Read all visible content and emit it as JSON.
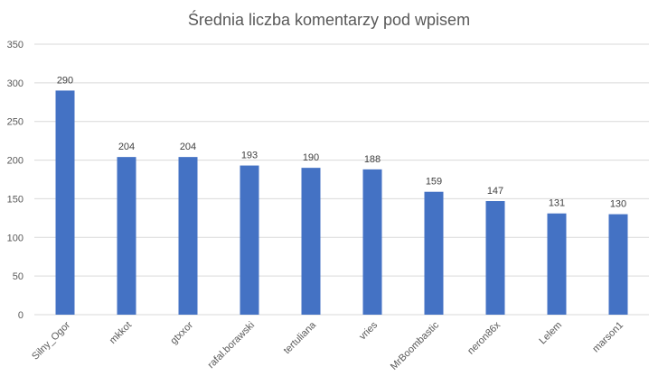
{
  "chart_data": {
    "type": "bar",
    "title": "Średnia liczba komentarzy pod wpisem",
    "xlabel": "",
    "ylabel": "",
    "categories": [
      "Silny_Ogor",
      "mkkot",
      "gtxxor",
      "rafal.borawski",
      "tertuliana",
      "vries",
      "MrBoombastic",
      "neron86x",
      "Lelem",
      "marson1"
    ],
    "values": [
      290,
      204,
      204,
      193,
      190,
      188,
      159,
      147,
      131,
      130
    ],
    "ylim": [
      0,
      350
    ],
    "yticks": [
      0,
      50,
      100,
      150,
      200,
      250,
      300,
      350
    ],
    "grid": true,
    "legend": "none",
    "bar_color": "#4472c4",
    "data_labels": true
  }
}
